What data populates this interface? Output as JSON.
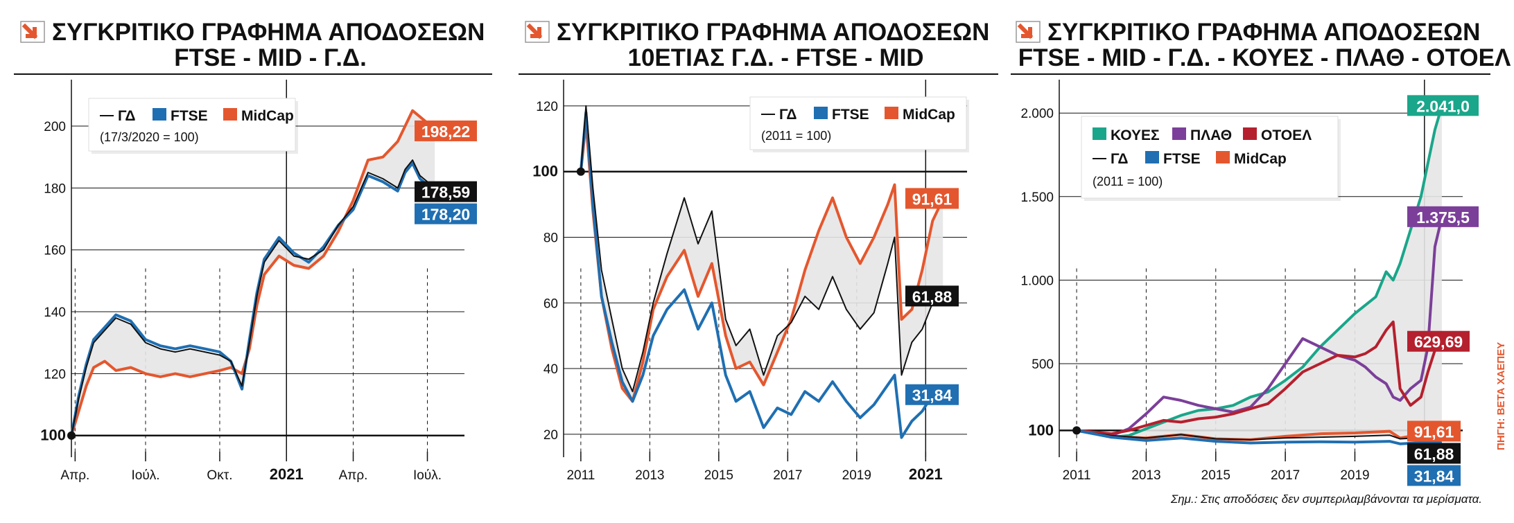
{
  "colors": {
    "gd": "#111111",
    "ftse": "#1f6fb2",
    "midcap": "#e4572e",
    "koyes": "#1aa68a",
    "plath": "#7b3f99",
    "otoel": "#b5202e",
    "shade": "#e6e6e6",
    "accent": "#e4572e"
  },
  "note": "Σημ.: Στις αποδόσεις δεν συμπεριλαμβάνονται τα μερίσματα.",
  "source": "ΠΗΓΗ: ΒΕΤΑ ΧΑΕΠΕΥ",
  "chart_data": [
    {
      "type": "line",
      "title_lines": [
        "ΣΥΓΚΡΙΤΙΚΟ ΓΡΑΦΗΜΑ ΑΠΟΔΟΣΕΩΝ",
        "FTSE - MID - Γ.Δ."
      ],
      "legend": [
        "ΓΔ",
        "FTSE",
        "MidCap"
      ],
      "base_note": "(17/3/2020 = 100)",
      "x_ticks": [
        {
          "t": 0.05,
          "label": "Απρ.",
          "bold": false
        },
        {
          "t": 1.0,
          "label": "Ιούλ.",
          "bold": false
        },
        {
          "t": 2.0,
          "label": "Οκτ.",
          "bold": false
        },
        {
          "t": 2.9,
          "label": "2021",
          "bold": true
        },
        {
          "t": 3.8,
          "label": "Απρ.",
          "bold": false
        },
        {
          "t": 4.8,
          "label": "Ιούλ.",
          "bold": false
        }
      ],
      "xlim": [
        0,
        5.3
      ],
      "ylim": [
        93,
        215
      ],
      "y_ticks": [
        {
          "v": 100,
          "label": "100",
          "bold": true
        },
        {
          "v": 120,
          "label": "120",
          "bold": false
        },
        {
          "v": 140,
          "label": "140",
          "bold": false
        },
        {
          "v": 160,
          "label": "160",
          "bold": false
        },
        {
          "v": 180,
          "label": "180",
          "bold": false
        },
        {
          "v": 200,
          "label": "200",
          "bold": false
        }
      ],
      "series": [
        {
          "name": "ΓΔ",
          "color_key": "gd",
          "x": [
            0,
            0.1,
            0.2,
            0.3,
            0.45,
            0.6,
            0.8,
            1.0,
            1.2,
            1.4,
            1.6,
            1.8,
            2.0,
            2.15,
            2.3,
            2.4,
            2.5,
            2.6,
            2.8,
            3.0,
            3.2,
            3.4,
            3.6,
            3.8,
            4.0,
            4.2,
            4.4,
            4.5,
            4.6,
            4.7,
            4.8,
            4.9
          ],
          "y": [
            100,
            112,
            122,
            130,
            134,
            138,
            136,
            130,
            128,
            127,
            128,
            127,
            126,
            124,
            116,
            130,
            145,
            156,
            163,
            158,
            157,
            160,
            168,
            174,
            185,
            183,
            180,
            186,
            189,
            184,
            182,
            178.59
          ]
        },
        {
          "name": "FTSE",
          "color_key": "ftse",
          "x": [
            0,
            0.1,
            0.2,
            0.3,
            0.45,
            0.6,
            0.8,
            1.0,
            1.2,
            1.4,
            1.6,
            1.8,
            2.0,
            2.15,
            2.3,
            2.4,
            2.5,
            2.6,
            2.8,
            3.0,
            3.2,
            3.4,
            3.6,
            3.8,
            4.0,
            4.2,
            4.4,
            4.5,
            4.6,
            4.7,
            4.8,
            4.9
          ],
          "y": [
            100,
            113,
            123,
            131,
            135,
            139,
            137,
            131,
            129,
            128,
            129,
            128,
            127,
            124,
            115,
            131,
            146,
            157,
            164,
            159,
            156,
            161,
            168,
            173,
            184,
            182,
            179,
            185,
            188,
            183,
            181,
            178.2
          ]
        },
        {
          "name": "MidCap",
          "color_key": "midcap",
          "x": [
            0,
            0.1,
            0.2,
            0.3,
            0.45,
            0.6,
            0.8,
            1.0,
            1.2,
            1.4,
            1.6,
            1.8,
            2.0,
            2.15,
            2.3,
            2.4,
            2.5,
            2.6,
            2.8,
            3.0,
            3.2,
            3.4,
            3.6,
            3.8,
            4.0,
            4.2,
            4.4,
            4.5,
            4.6,
            4.7,
            4.8,
            4.9
          ],
          "y": [
            100,
            108,
            116,
            122,
            124,
            121,
            122,
            120,
            119,
            120,
            119,
            120,
            121,
            122,
            120,
            128,
            142,
            152,
            158,
            155,
            154,
            158,
            166,
            176,
            189,
            190,
            195,
            200,
            205,
            203,
            201,
            198.22
          ]
        }
      ],
      "shade_between": [
        "ΓΔ",
        "MidCap"
      ],
      "end_labels": [
        {
          "text": "198,22",
          "value": 198.22,
          "color_key": "midcap"
        },
        {
          "text": "178,59",
          "value": 178.59,
          "color_key": "gd"
        },
        {
          "text": "178,20",
          "value": 178.2,
          "color_key": "ftse"
        }
      ]
    },
    {
      "type": "line",
      "title_lines": [
        "ΣΥΓΚΡΙΤΙΚΟ ΓΡΑΦΗΜΑ ΑΠΟΔΟΣΕΩΝ",
        "10ΕΤΙΑΣ Γ.Δ. - FTSE - MID"
      ],
      "legend": [
        "ΓΔ",
        "FTSE",
        "MidCap"
      ],
      "base_note": "(2011 = 100)",
      "x_ticks": [
        {
          "t": 2011,
          "label": "2011",
          "bold": false
        },
        {
          "t": 2013,
          "label": "2013",
          "bold": false
        },
        {
          "t": 2015,
          "label": "2015",
          "bold": false
        },
        {
          "t": 2017,
          "label": "2017",
          "bold": false
        },
        {
          "t": 2019,
          "label": "2019",
          "bold": false
        },
        {
          "t": 2021,
          "label": "2021",
          "bold": true
        }
      ],
      "xlim": [
        2010.5,
        2022.2
      ],
      "ylim": [
        13,
        128
      ],
      "y_ticks": [
        {
          "v": 20,
          "label": "20",
          "bold": false
        },
        {
          "v": 40,
          "label": "40",
          "bold": false
        },
        {
          "v": 60,
          "label": "60",
          "bold": false
        },
        {
          "v": 80,
          "label": "80",
          "bold": false
        },
        {
          "v": 100,
          "label": "100",
          "bold": true
        },
        {
          "v": 120,
          "label": "120",
          "bold": false
        }
      ],
      "series": [
        {
          "name": "ΓΔ",
          "color_key": "gd",
          "x": [
            2011,
            2011.15,
            2011.35,
            2011.6,
            2011.9,
            2012.2,
            2012.5,
            2012.8,
            2013.1,
            2013.5,
            2014.0,
            2014.4,
            2014.8,
            2015.2,
            2015.5,
            2015.9,
            2016.3,
            2016.7,
            2017.1,
            2017.5,
            2017.9,
            2018.3,
            2018.7,
            2019.1,
            2019.5,
            2019.9,
            2020.1,
            2020.3,
            2020.6,
            2020.9,
            2021.2,
            2021.5
          ],
          "y": [
            100,
            120,
            95,
            70,
            55,
            40,
            33,
            45,
            60,
            75,
            92,
            78,
            88,
            55,
            47,
            52,
            38,
            50,
            54,
            62,
            58,
            68,
            58,
            52,
            57,
            72,
            80,
            38,
            48,
            52,
            60,
            61.88
          ]
        },
        {
          "name": "FTSE",
          "color_key": "ftse",
          "x": [
            2011,
            2011.15,
            2011.35,
            2011.6,
            2011.9,
            2012.2,
            2012.5,
            2012.8,
            2013.1,
            2013.5,
            2014.0,
            2014.4,
            2014.8,
            2015.2,
            2015.5,
            2015.9,
            2016.3,
            2016.7,
            2017.1,
            2017.5,
            2017.9,
            2018.3,
            2018.7,
            2019.1,
            2019.5,
            2019.9,
            2020.1,
            2020.3,
            2020.6,
            2020.9,
            2021.2,
            2021.5
          ],
          "y": [
            100,
            118,
            90,
            62,
            48,
            36,
            30,
            38,
            50,
            58,
            64,
            52,
            60,
            38,
            30,
            33,
            22,
            28,
            26,
            33,
            30,
            36,
            30,
            25,
            29,
            35,
            38,
            19,
            24,
            27,
            32,
            31.84
          ]
        },
        {
          "name": "MidCap",
          "color_key": "midcap",
          "x": [
            2011,
            2011.15,
            2011.35,
            2011.6,
            2011.9,
            2012.2,
            2012.5,
            2012.8,
            2013.1,
            2013.5,
            2014.0,
            2014.4,
            2014.8,
            2015.2,
            2015.5,
            2015.9,
            2016.3,
            2016.7,
            2017.1,
            2017.5,
            2017.9,
            2018.3,
            2018.7,
            2019.1,
            2019.5,
            2019.9,
            2020.1,
            2020.3,
            2020.6,
            2020.9,
            2021.2,
            2021.5
          ],
          "y": [
            100,
            115,
            88,
            62,
            46,
            34,
            30,
            42,
            58,
            68,
            76,
            62,
            72,
            50,
            40,
            42,
            35,
            45,
            55,
            70,
            82,
            92,
            80,
            72,
            80,
            90,
            96,
            55,
            58,
            70,
            85,
            91.61
          ]
        }
      ],
      "shade_between": [
        "ΓΔ",
        "MidCap"
      ],
      "end_labels": [
        {
          "text": "91,61",
          "value": 91.61,
          "color_key": "midcap"
        },
        {
          "text": "61,88",
          "value": 61.88,
          "color_key": "gd"
        },
        {
          "text": "31,84",
          "value": 31.84,
          "color_key": "ftse"
        }
      ]
    },
    {
      "type": "line",
      "title_lines": [
        "ΣΥΓΚΡΙΤΙΚΟ ΓΡΑΦΗΜΑ ΑΠΟΔΟΣΕΩΝ",
        "FTSE - MID - Γ.Δ. - ΚΟΥΕΣ - ΠΛΑΘ - ΟΤΟΕΛ"
      ],
      "legend": [
        "ΚΟΥΕΣ",
        "ΠΛΑΘ",
        "ΟΤΟΕΛ",
        "ΓΔ",
        "FTSE",
        "MidCap"
      ],
      "base_note": "(2011 = 100)",
      "x_ticks": [
        {
          "t": 2011,
          "label": "2011",
          "bold": false
        },
        {
          "t": 2013,
          "label": "2013",
          "bold": false
        },
        {
          "t": 2015,
          "label": "2015",
          "bold": false
        },
        {
          "t": 2017,
          "label": "2017",
          "bold": false
        },
        {
          "t": 2019,
          "label": "2019",
          "bold": false
        },
        {
          "t": 2021,
          "label": "2021",
          "bold": true
        }
      ],
      "xlim": [
        2010.5,
        2022.1
      ],
      "ylim": [
        -60,
        2200
      ],
      "y_ticks": [
        {
          "v": 100,
          "label": "100",
          "bold": true
        },
        {
          "v": 500,
          "label": "500",
          "bold": false
        },
        {
          "v": 1000,
          "label": "1.000",
          "bold": false
        },
        {
          "v": 1500,
          "label": "1.500",
          "bold": false
        },
        {
          "v": 2000,
          "label": "2.000",
          "bold": false
        }
      ],
      "series": [
        {
          "name": "ΚΟΥΕΣ",
          "color_key": "koyes",
          "x": [
            2011,
            2011.5,
            2012,
            2012.5,
            2013,
            2013.5,
            2014,
            2014.5,
            2015,
            2015.5,
            2016,
            2016.5,
            2017,
            2017.5,
            2018,
            2018.5,
            2019,
            2019.3,
            2019.6,
            2019.9,
            2020.1,
            2020.3,
            2020.6,
            2020.9,
            2021.1,
            2021.3,
            2021.5
          ],
          "y": [
            100,
            80,
            60,
            70,
            110,
            150,
            190,
            220,
            230,
            250,
            300,
            330,
            400,
            480,
            600,
            700,
            800,
            850,
            900,
            1050,
            1000,
            1100,
            1300,
            1500,
            1700,
            1900,
            2041
          ]
        },
        {
          "name": "ΠΛΑΘ",
          "color_key": "plath",
          "x": [
            2011,
            2011.5,
            2012,
            2012.5,
            2013,
            2013.5,
            2014,
            2014.5,
            2015,
            2015.5,
            2016,
            2016.5,
            2017,
            2017.5,
            2018,
            2018.5,
            2019,
            2019.3,
            2019.6,
            2019.9,
            2020.1,
            2020.3,
            2020.6,
            2020.9,
            2021.1,
            2021.3,
            2021.5
          ],
          "y": [
            100,
            80,
            70,
            110,
            200,
            300,
            280,
            250,
            230,
            210,
            240,
            350,
            500,
            650,
            600,
            550,
            520,
            480,
            420,
            380,
            300,
            280,
            350,
            400,
            600,
            1200,
            1375.5
          ]
        },
        {
          "name": "ΟΤΟΕΛ",
          "color_key": "otoel",
          "x": [
            2011,
            2011.5,
            2012,
            2012.5,
            2013,
            2013.5,
            2014,
            2014.5,
            2015,
            2015.5,
            2016,
            2016.5,
            2017,
            2017.5,
            2018,
            2018.5,
            2019,
            2019.3,
            2019.6,
            2019.9,
            2020.1,
            2020.3,
            2020.6,
            2020.9,
            2021.1,
            2021.3,
            2021.5
          ],
          "y": [
            100,
            90,
            80,
            100,
            130,
            160,
            150,
            170,
            180,
            200,
            230,
            260,
            350,
            450,
            500,
            550,
            540,
            560,
            600,
            700,
            750,
            350,
            250,
            300,
            450,
            580,
            629.69
          ]
        },
        {
          "name": "ΓΔ",
          "color_key": "gd",
          "x": [
            2011,
            2012,
            2013,
            2014,
            2015,
            2016,
            2017,
            2018,
            2019,
            2020,
            2020.3,
            2021,
            2021.5
          ],
          "y": [
            100,
            70,
            55,
            75,
            50,
            45,
            55,
            60,
            65,
            72,
            50,
            58,
            61.88
          ]
        },
        {
          "name": "FTSE",
          "color_key": "ftse",
          "x": [
            2011,
            2012,
            2013,
            2014,
            2015,
            2016,
            2017,
            2018,
            2019,
            2020,
            2020.3,
            2021,
            2021.5
          ],
          "y": [
            100,
            60,
            40,
            55,
            35,
            25,
            30,
            32,
            30,
            35,
            20,
            28,
            31.84
          ]
        },
        {
          "name": "MidCap",
          "color_key": "midcap",
          "x": [
            2011,
            2012,
            2013,
            2014,
            2015,
            2016,
            2017,
            2018,
            2019,
            2020,
            2020.3,
            2021,
            2021.5
          ],
          "y": [
            100,
            65,
            55,
            75,
            50,
            45,
            65,
            80,
            85,
            95,
            55,
            80,
            91.61
          ]
        }
      ],
      "shade_between": [
        "ΚΟΥΕΣ",
        "ΓΔ"
      ],
      "end_labels": [
        {
          "text": "2.041,0",
          "value": 2041,
          "color_key": "koyes"
        },
        {
          "text": "1.375,5",
          "value": 1375.5,
          "color_key": "plath"
        },
        {
          "text": "629,69",
          "value": 629.69,
          "color_key": "otoel"
        },
        {
          "text": "91,61",
          "value": 91.61,
          "color_key": "midcap"
        },
        {
          "text": "61,88",
          "value": 61.88,
          "color_key": "gd"
        },
        {
          "text": "31,84",
          "value": 31.84,
          "color_key": "ftse"
        }
      ]
    }
  ]
}
